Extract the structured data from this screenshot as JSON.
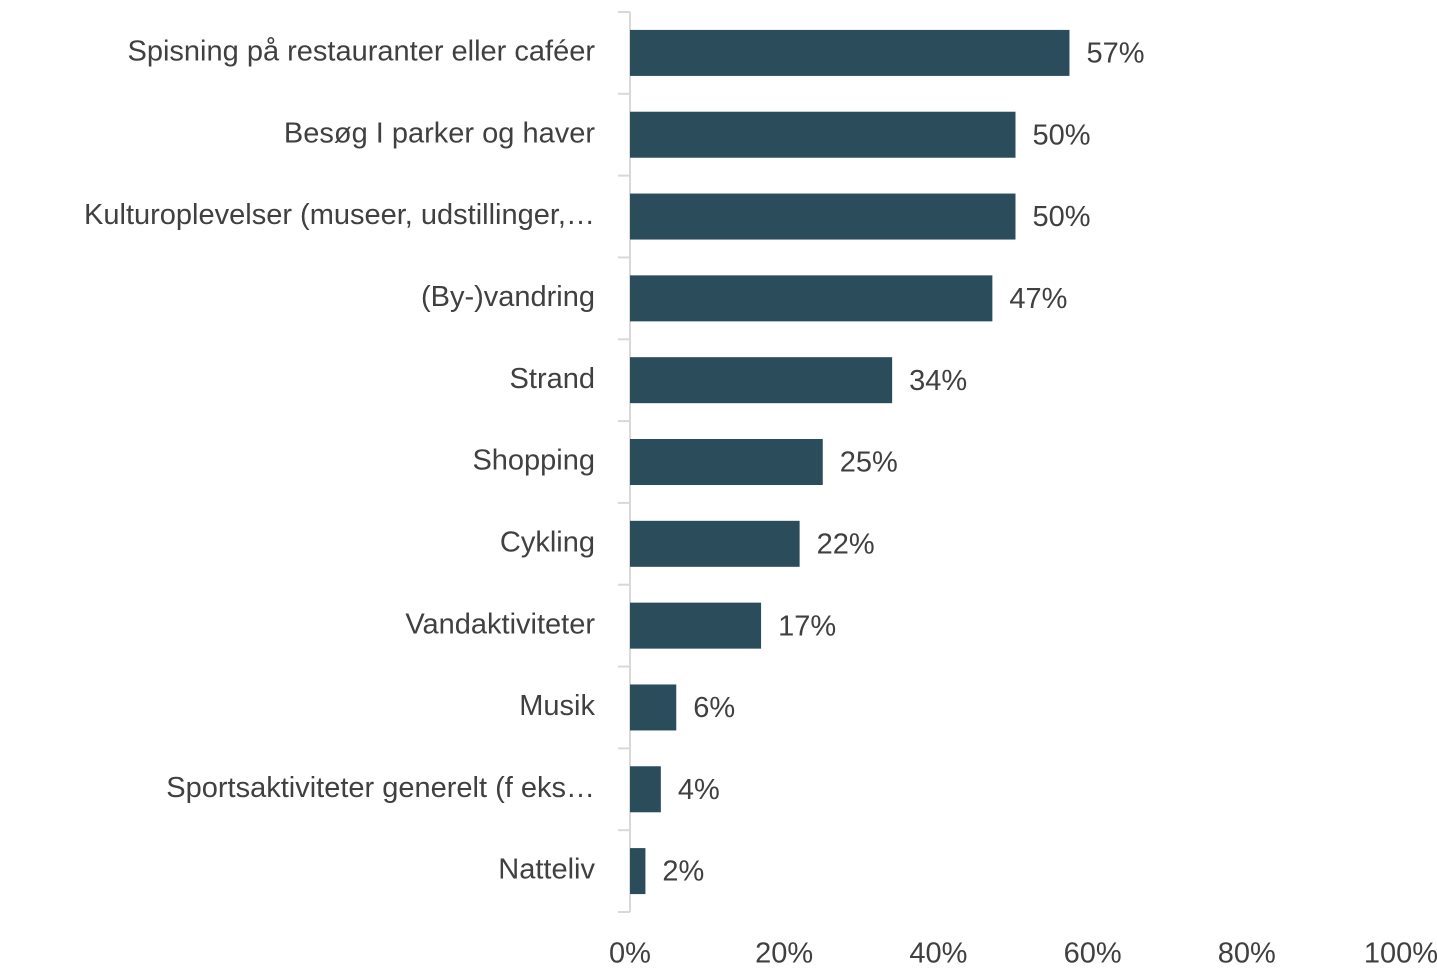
{
  "chart_data": {
    "type": "bar",
    "orientation": "horizontal",
    "categories": [
      "Spisning på restauranter eller caféer",
      "Besøg I parker og haver",
      "Kulturoplevelser (museer, udstillinger,…",
      "(By-)vandring",
      "Strand",
      "Shopping",
      "Cykling",
      "Vandaktiviteter",
      "Musik",
      "Sportsaktiviteter generelt (f eks…",
      "Natteliv"
    ],
    "values": [
      57,
      50,
      50,
      47,
      34,
      25,
      22,
      17,
      6,
      4,
      2
    ],
    "value_labels": [
      "57%",
      "50%",
      "50%",
      "47%",
      "34%",
      "25%",
      "22%",
      "17%",
      "6%",
      "4%",
      "2%"
    ],
    "color": "#2b4c5a",
    "xlim": [
      0,
      100
    ],
    "xticks": [
      {
        "value": 0,
        "label": "0%"
      },
      {
        "value": 20,
        "label": "20%"
      },
      {
        "value": 40,
        "label": "40%"
      },
      {
        "value": 60,
        "label": "60%"
      },
      {
        "value": 80,
        "label": "80%"
      },
      {
        "value": 100,
        "label": "100%"
      }
    ],
    "grid": false
  }
}
